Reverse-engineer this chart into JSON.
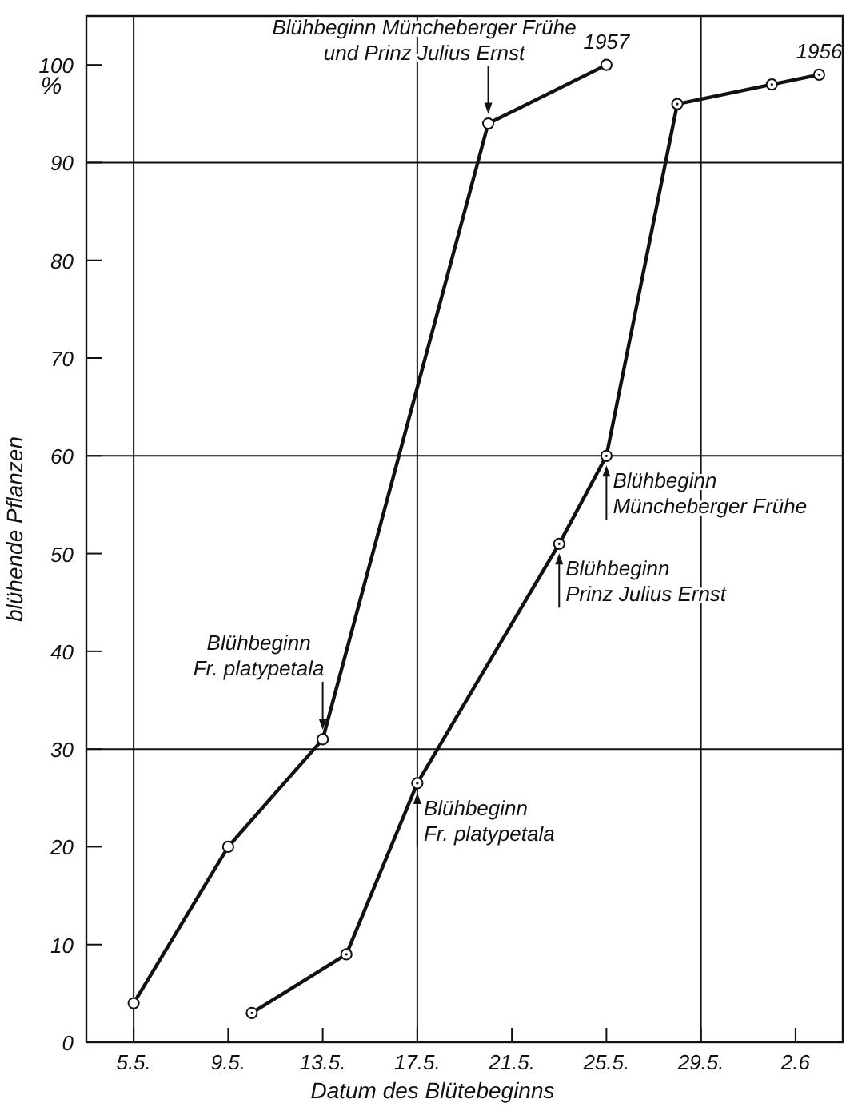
{
  "chart_data": {
    "type": "line",
    "xlabel": "Datum des Blütebeginns",
    "ylabel": "blühende Pflanzen",
    "xlim": [
      "--05-03",
      "--06-04"
    ],
    "ylim": [
      0,
      105
    ],
    "xticks": [
      {
        "value": "--05-05",
        "label": "5.5."
      },
      {
        "value": "--05-09",
        "label": "9.5."
      },
      {
        "value": "--05-13",
        "label": "13.5."
      },
      {
        "value": "--05-17",
        "label": "17.5."
      },
      {
        "value": "--05-21",
        "label": "21.5."
      },
      {
        "value": "--05-25",
        "label": "25.5."
      },
      {
        "value": "--05-29",
        "label": "29.5."
      },
      {
        "value": "--06-02",
        "label": "2.6"
      }
    ],
    "yticks": [
      0,
      10,
      20,
      30,
      40,
      50,
      60,
      70,
      80,
      90,
      100
    ],
    "grid": false,
    "marker": "circle",
    "line_style": "solid",
    "ref_lines": [
      {
        "axis": "x",
        "value": "--05-05"
      },
      {
        "axis": "x",
        "value": "--05-17"
      },
      {
        "axis": "x",
        "value": "--05-29"
      },
      {
        "axis": "y",
        "value": 30
      },
      {
        "axis": "y",
        "value": 60
      },
      {
        "axis": "y",
        "value": 90
      }
    ],
    "series": [
      {
        "name": "1957",
        "color": "#111111",
        "x": [
          "--05-05",
          "--05-09",
          "--05-13",
          "--05-20",
          "--05-25"
        ],
        "values": [
          4,
          20,
          31,
          94,
          100
        ]
      },
      {
        "name": "1956",
        "color": "#111111",
        "x": [
          "--05-10",
          "--05-14",
          "--05-17",
          "--05-23",
          "--05-25",
          "--05-28",
          "--06-01",
          "--06-03"
        ],
        "values": [
          3,
          9,
          26.5,
          51,
          60,
          96,
          98,
          99
        ]
      }
    ],
    "annotations": [
      "%",
      {
        "text": "Blühbeginn Müncheberger Frühe\nund Prinz Julius Ernst",
        "x": "--05-20",
        "y": 94
      },
      {
        "text": "Blühbeginn\nFr. platypetala",
        "x": "--05-13",
        "y": 31
      },
      {
        "text": "Blühbeginn\nFr. platypetala",
        "x": "--05-17",
        "y": 26.5
      },
      {
        "text": "Blühbeginn\nPrinz Julius Ernst",
        "x": "--05-23",
        "y": 51
      },
      {
        "text": "Blühbeginn\nMüncheberger Frühe",
        "x": "--05-25",
        "y": 60
      }
    ]
  }
}
